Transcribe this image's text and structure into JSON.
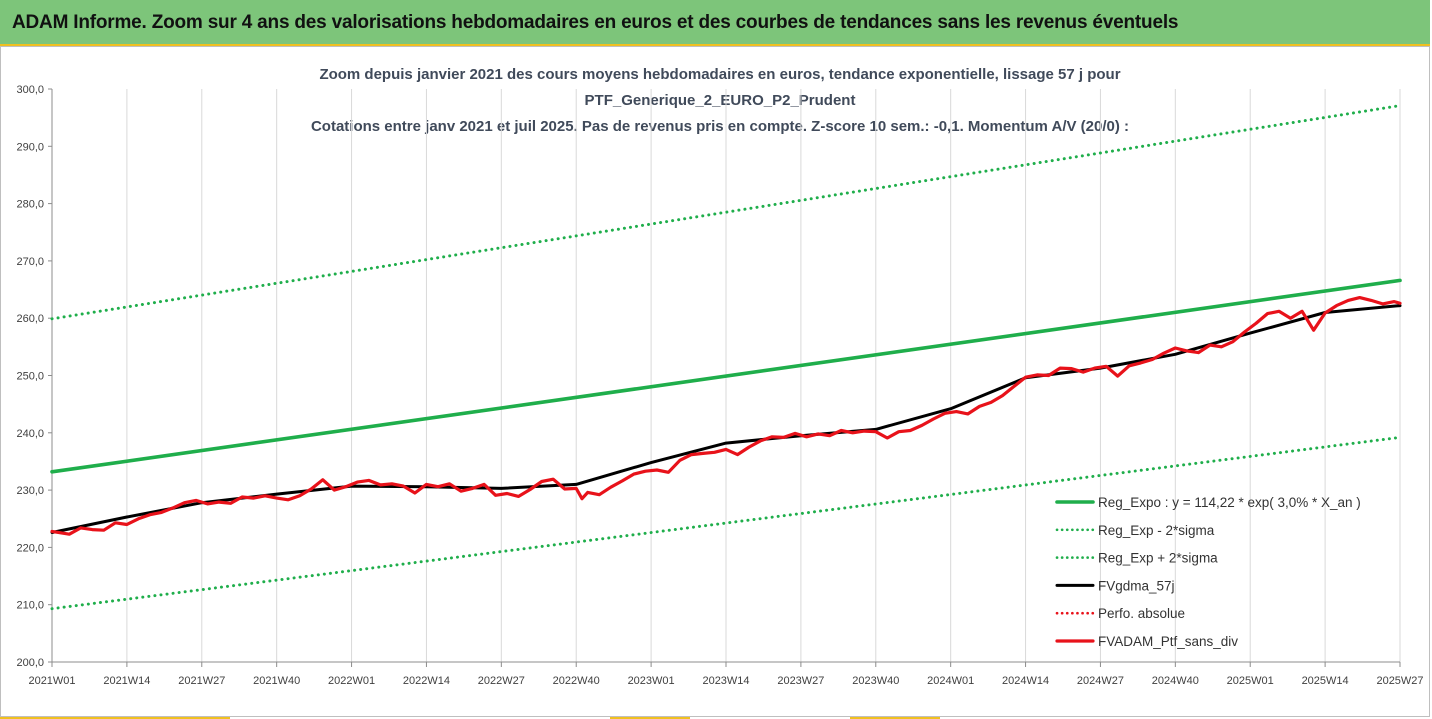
{
  "header": {
    "title": "ADAM Informe. Zoom sur 4 ans des valorisations hebdomadaires en euros et des courbes de tendances sans les revenus éventuels"
  },
  "colors": {
    "banner": "#7dc57a",
    "accent": "#f0c020",
    "trend": "#1fae4b",
    "band": "#1fae4b",
    "smooth": "#000000",
    "price": "#e8121a"
  },
  "chart_data": {
    "type": "line",
    "title_lines": [
      "Zoom depuis janvier 2021 des cours moyens hebdomadaires  en euros, tendance exponentielle, lissage 57 j pour",
      "PTF_Generique_2_EURO_P2_Prudent",
      "Cotations entre janv 2021 et juil 2025. Pas de revenus pris en compte. Z-score 10 sem.: -0,1. Momentum A/V (20/0) :"
    ],
    "x_ticks": [
      "2021W01",
      "2021W14",
      "2021W27",
      "2021W40",
      "2022W01",
      "2022W14",
      "2022W27",
      "2022W40",
      "2023W01",
      "2023W14",
      "2023W27",
      "2023W40",
      "2024W01",
      "2024W14",
      "2024W27",
      "2024W40",
      "2025W01",
      "2025W14",
      "2025W27"
    ],
    "y_ticks": [
      "200,0",
      "210,0",
      "220,0",
      "230,0",
      "240,0",
      "250,0",
      "260,0",
      "270,0",
      "280,0",
      "290,0",
      "300,0"
    ],
    "ylim": [
      200,
      300
    ],
    "xlim": [
      0,
      234
    ],
    "grid": "vertical",
    "legend_position": "bottom-right",
    "series": [
      {
        "name": "Reg_Expo : y = 114,22 * exp( 3,0% *  X_an )",
        "style": "solid",
        "color": "#1fae4b",
        "x": [
          0,
          234
        ],
        "y": [
          233.2,
          266.6
        ]
      },
      {
        "name": "Reg_Exp - 2*sigma",
        "style": "dotted",
        "color": "#1fae4b",
        "x": [
          0,
          234
        ],
        "y": [
          209.3,
          239.2
        ]
      },
      {
        "name": "Reg_Exp + 2*sigma",
        "style": "dotted",
        "color": "#1fae4b",
        "x": [
          0,
          234
        ],
        "y": [
          259.9,
          297.1
        ]
      },
      {
        "name": "FVgdma_57j",
        "style": "solid",
        "color": "#000000",
        "x": [
          0,
          13,
          26,
          39,
          52,
          65,
          78,
          91,
          104,
          117,
          130,
          143,
          156,
          169,
          182,
          195,
          208,
          221,
          234
        ],
        "y": [
          222.6,
          225.3,
          227.8,
          229.3,
          230.7,
          230.6,
          230.3,
          231.0,
          234.8,
          238.2,
          239.5,
          240.6,
          244.2,
          249.6,
          251.3,
          253.7,
          257.4,
          261.0,
          262.2
        ]
      },
      {
        "name": "Perfo. absolue",
        "style": "dotted",
        "color": "#e8121a",
        "x": [],
        "y": []
      },
      {
        "name": "FVADAM_Ptf_sans_div",
        "style": "solid",
        "color": "#e8121a",
        "x": [
          0,
          3,
          5,
          7,
          9,
          11,
          13,
          15,
          17,
          19,
          21,
          23,
          25,
          27,
          29,
          31,
          33,
          35,
          37,
          39,
          41,
          43,
          45,
          47,
          49,
          51,
          53,
          55,
          57,
          59,
          61,
          63,
          65,
          67,
          69,
          71,
          73,
          75,
          77,
          79,
          81,
          83,
          85,
          87,
          89,
          91,
          92,
          93,
          95,
          97,
          99,
          101,
          103,
          105,
          107,
          109,
          111,
          113,
          115,
          117,
          119,
          121,
          123,
          125,
          127,
          129,
          131,
          133,
          135,
          137,
          139,
          141,
          143,
          145,
          147,
          149,
          151,
          153,
          155,
          157,
          159,
          161,
          163,
          165,
          167,
          169,
          171,
          173,
          175,
          177,
          179,
          181,
          183,
          185,
          187,
          189,
          191,
          193,
          195,
          197,
          199,
          201,
          203,
          205,
          207,
          209,
          211,
          213,
          215,
          217,
          219,
          221,
          223,
          225,
          227,
          229,
          231,
          233,
          234
        ],
        "y": [
          222.8,
          222.3,
          223.4,
          223.1,
          223.0,
          224.3,
          224.0,
          225.0,
          225.7,
          226.1,
          226.9,
          227.8,
          228.2,
          227.6,
          227.9,
          227.7,
          228.8,
          228.6,
          229.0,
          228.6,
          228.3,
          229.0,
          230.2,
          231.8,
          230.0,
          230.6,
          231.4,
          231.7,
          230.9,
          231.1,
          230.7,
          229.5,
          231.0,
          230.6,
          231.1,
          229.8,
          230.3,
          231.0,
          229.1,
          229.4,
          228.9,
          230.1,
          231.5,
          231.9,
          230.2,
          230.3,
          228.5,
          229.6,
          229.2,
          230.5,
          231.6,
          232.8,
          233.3,
          233.5,
          233.1,
          235.2,
          236.2,
          236.4,
          236.6,
          237.1,
          236.2,
          237.5,
          238.6,
          239.3,
          239.2,
          239.9,
          239.3,
          239.8,
          239.5,
          240.4,
          240.0,
          240.3,
          240.2,
          239.1,
          240.2,
          240.4,
          241.3,
          242.4,
          243.4,
          243.7,
          243.3,
          244.6,
          245.3,
          246.5,
          248.1,
          249.7,
          250.1,
          250.0,
          251.3,
          251.2,
          250.6,
          251.3,
          251.6,
          249.9,
          251.7,
          252.2,
          252.8,
          253.9,
          254.8,
          254.3,
          254.0,
          255.3,
          255.0,
          255.9,
          257.6,
          259.1,
          260.8,
          261.2,
          260.0,
          261.2,
          257.9,
          260.9,
          262.2,
          263.1,
          263.6,
          263.1,
          262.5,
          262.9,
          262.6
        ]
      }
    ]
  }
}
